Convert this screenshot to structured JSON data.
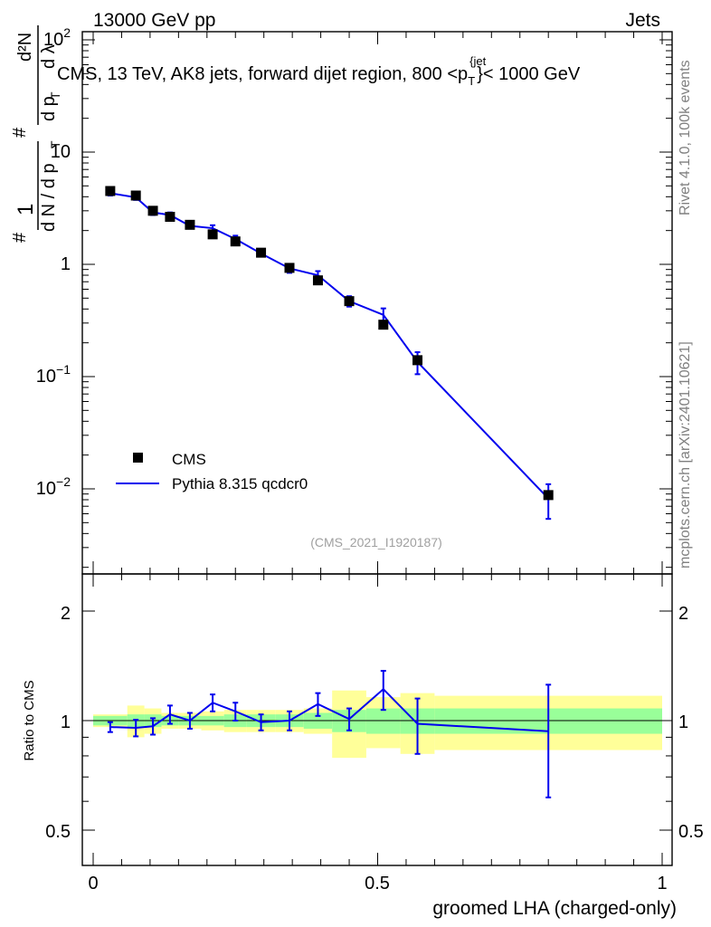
{
  "header": {
    "left": "13000 GeV pp",
    "right": "Jets",
    "title": "CMS, 13 TeV, AK8 jets, forward dijet region, 800 <p",
    "title_sup": "{jet",
    "title_sub": "T",
    "title_tail": "}< 1000 GeV"
  },
  "side_labels": {
    "rivet": "Rivet 4.1.0,  100k events",
    "mcplots": "mcplots.cern.ch [arXiv:2401.10621]"
  },
  "analysis_id": "(CMS_2021_I1920187)",
  "ylabel_main": {
    "hash1": "#",
    "one": "1",
    "dN": "d N / d p",
    "T1": "T",
    "hash2": "#",
    "d2N": "d²N",
    "dpT": "d p",
    "T2": "T",
    "dl": "d λ"
  },
  "legend": {
    "data_label": "CMS",
    "mc_label": "Pythia 8.315 qcdcr0"
  },
  "colors": {
    "mc": "#0000ee",
    "data": "#000000",
    "band_inner": "#99ff99",
    "band_outer": "#ffff99"
  },
  "main_ticks": [
    {
      "base": "10",
      "exp": "2"
    },
    {
      "text": "10"
    },
    {
      "text": "1"
    },
    {
      "base": "10",
      "exp": "−1"
    },
    {
      "base": "10",
      "exp": "−2"
    }
  ],
  "ratio": {
    "ylabel": "Ratio to CMS",
    "ticks": [
      "2",
      "1",
      "0.5"
    ]
  },
  "xaxis": {
    "label": "groomed LHA (charged-only)",
    "ticks": [
      "0",
      "0.5",
      "1"
    ]
  },
  "chart_data": {
    "type": "scatter",
    "title": "CMS, 13 TeV, AK8 jets, forward dijet region, 800 < pT jet < 1000 GeV",
    "xlabel": "groomed LHA (charged-only)",
    "ylabel": "1/N dN/dλ",
    "xlim": [
      0,
      1
    ],
    "ylim": [
      0.002,
      120
    ],
    "yscale": "log",
    "bins": [
      [
        0.0,
        0.06
      ],
      [
        0.06,
        0.09
      ],
      [
        0.09,
        0.12
      ],
      [
        0.12,
        0.15
      ],
      [
        0.15,
        0.19
      ],
      [
        0.19,
        0.23
      ],
      [
        0.23,
        0.27
      ],
      [
        0.27,
        0.32
      ],
      [
        0.32,
        0.37
      ],
      [
        0.37,
        0.42
      ],
      [
        0.42,
        0.48
      ],
      [
        0.48,
        0.54
      ],
      [
        0.54,
        0.6
      ],
      [
        0.6,
        1.0
      ]
    ],
    "series": [
      {
        "name": "CMS",
        "x": [
          0.03,
          0.075,
          0.105,
          0.135,
          0.17,
          0.21,
          0.25,
          0.295,
          0.345,
          0.395,
          0.45,
          0.51,
          0.57,
          0.8
        ],
        "values": [
          4.5,
          4.1,
          3.0,
          2.65,
          2.25,
          1.85,
          1.6,
          1.27,
          0.93,
          0.72,
          0.47,
          0.29,
          0.14,
          0.0088
        ],
        "band_inner_rel": [
          0.03,
          0.04,
          0.04,
          0.03,
          0.03,
          0.03,
          0.04,
          0.04,
          0.04,
          0.05,
          0.07,
          0.08,
          0.08,
          0.08
        ],
        "band_outer_rel": [
          0.04,
          0.1,
          0.08,
          0.05,
          0.05,
          0.06,
          0.07,
          0.07,
          0.07,
          0.08,
          0.21,
          0.16,
          0.19,
          0.17
        ]
      },
      {
        "name": "Pythia 8.315 qcdcr0",
        "x": [
          0.03,
          0.075,
          0.105,
          0.135,
          0.17,
          0.21,
          0.25,
          0.295,
          0.345,
          0.395,
          0.45,
          0.51,
          0.57,
          0.8
        ],
        "values": [
          4.3,
          3.95,
          2.9,
          2.75,
          2.2,
          2.1,
          1.68,
          1.25,
          0.92,
          0.8,
          0.47,
          0.355,
          0.135,
          0.0082
        ],
        "errors": [
          0.2,
          0.2,
          0.15,
          0.15,
          0.1,
          0.13,
          0.12,
          0.07,
          0.08,
          0.07,
          0.05,
          0.05,
          0.03,
          0.0028
        ],
        "ratio": [
          0.96,
          0.955,
          0.965,
          1.04,
          1.0,
          1.12,
          1.06,
          0.99,
          1.0,
          1.11,
          1.01,
          1.22,
          0.98,
          0.935
        ],
        "ratio_err": [
          0.03,
          0.05,
          0.05,
          0.06,
          0.05,
          0.06,
          0.06,
          0.05,
          0.06,
          0.08,
          0.07,
          0.15,
          0.17,
          0.32
        ]
      }
    ],
    "ratio_ylabel": "Ratio to CMS",
    "ratio_ylim": [
      0.4,
      2.5
    ]
  }
}
